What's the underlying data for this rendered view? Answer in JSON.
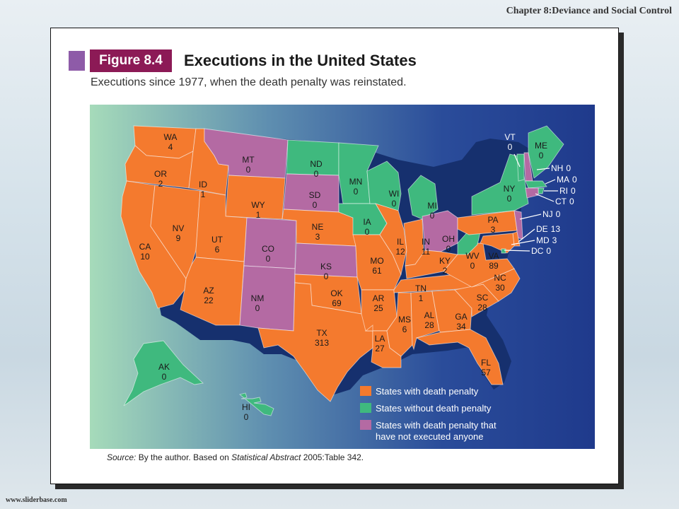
{
  "header": {
    "chapter": "Chapter  8:Deviance and Social Control"
  },
  "footer": {
    "url": "www.sliderbase.com"
  },
  "figure": {
    "badge": "Figure 8.4",
    "title": "Executions in the United States",
    "subtitle": "Executions since 1977, when the death penalty was reinstated.",
    "source_label": "Source:",
    "source_text_1": " By the author. Based on ",
    "source_italic": "Statistical Abstract",
    "source_text_2": " 2005:Table 342."
  },
  "colors": {
    "death_penalty": "#f47a2e",
    "no_death_penalty": "#3fb97e",
    "no_executions": "#b46aa3",
    "ocean_light": "#9fd7b7",
    "ocean_dark": "#1f3a8c"
  },
  "legend": [
    {
      "category": "death_penalty",
      "label": "States with death penalty"
    },
    {
      "category": "no_death_penalty",
      "label": "States without death penalty"
    },
    {
      "category": "no_executions",
      "label_line1": "States with death penalty that",
      "label_line2": "have not executed anyone"
    }
  ],
  "states": [
    {
      "abbr": "WA",
      "value": "4",
      "category": "death_penalty"
    },
    {
      "abbr": "OR",
      "value": "2",
      "category": "death_penalty"
    },
    {
      "abbr": "CA",
      "value": "10",
      "category": "death_penalty"
    },
    {
      "abbr": "ID",
      "value": "1",
      "category": "death_penalty"
    },
    {
      "abbr": "NV",
      "value": "9",
      "category": "death_penalty"
    },
    {
      "abbr": "MT",
      "value": "0",
      "category": "no_executions"
    },
    {
      "abbr": "WY",
      "value": "1",
      "category": "death_penalty"
    },
    {
      "abbr": "UT",
      "value": "6",
      "category": "death_penalty"
    },
    {
      "abbr": "AZ",
      "value": "22",
      "category": "death_penalty"
    },
    {
      "abbr": "CO",
      "value": "0",
      "category": "no_executions"
    },
    {
      "abbr": "NM",
      "value": "0",
      "category": "no_executions"
    },
    {
      "abbr": "ND",
      "value": "0",
      "category": "no_death_penalty"
    },
    {
      "abbr": "SD",
      "value": "0",
      "category": "no_executions"
    },
    {
      "abbr": "NE",
      "value": "3",
      "category": "death_penalty"
    },
    {
      "abbr": "KS",
      "value": "0",
      "category": "no_executions"
    },
    {
      "abbr": "OK",
      "value": "69",
      "category": "death_penalty"
    },
    {
      "abbr": "TX",
      "value": "313",
      "category": "death_penalty"
    },
    {
      "abbr": "MN",
      "value": "0",
      "category": "no_death_penalty"
    },
    {
      "abbr": "IA",
      "value": "0",
      "category": "no_death_penalty"
    },
    {
      "abbr": "MO",
      "value": "61",
      "category": "death_penalty"
    },
    {
      "abbr": "AR",
      "value": "25",
      "category": "death_penalty"
    },
    {
      "abbr": "LA",
      "value": "27",
      "category": "death_penalty"
    },
    {
      "abbr": "WI",
      "value": "0",
      "category": "no_death_penalty"
    },
    {
      "abbr": "IL",
      "value": "12",
      "category": "death_penalty"
    },
    {
      "abbr": "MI",
      "value": "0",
      "category": "no_death_penalty"
    },
    {
      "abbr": "IN",
      "value": "11",
      "category": "death_penalty"
    },
    {
      "abbr": "OH",
      "value": "0",
      "category": "no_executions"
    },
    {
      "abbr": "KY",
      "value": "2",
      "category": "death_penalty"
    },
    {
      "abbr": "TN",
      "value": "1",
      "category": "death_penalty"
    },
    {
      "abbr": "MS",
      "value": "6",
      "category": "death_penalty"
    },
    {
      "abbr": "AL",
      "value": "28",
      "category": "death_penalty"
    },
    {
      "abbr": "GA",
      "value": "34",
      "category": "death_penalty"
    },
    {
      "abbr": "FL",
      "value": "57",
      "category": "death_penalty"
    },
    {
      "abbr": "SC",
      "value": "28",
      "category": "death_penalty"
    },
    {
      "abbr": "NC",
      "value": "30",
      "category": "death_penalty"
    },
    {
      "abbr": "VA",
      "value": "89",
      "category": "death_penalty"
    },
    {
      "abbr": "WV",
      "value": "0",
      "category": "no_death_penalty"
    },
    {
      "abbr": "PA",
      "value": "3",
      "category": "death_penalty"
    },
    {
      "abbr": "NY",
      "value": "0",
      "category": "no_death_penalty"
    },
    {
      "abbr": "VT",
      "value": "0",
      "category": "no_death_penalty"
    },
    {
      "abbr": "ME",
      "value": "0",
      "category": "no_death_penalty"
    },
    {
      "abbr": "NH",
      "value": "0",
      "category": "no_executions"
    },
    {
      "abbr": "MA",
      "value": "0",
      "category": "no_death_penalty"
    },
    {
      "abbr": "RI",
      "value": "0",
      "category": "no_death_penalty"
    },
    {
      "abbr": "CT",
      "value": "0",
      "category": "no_executions"
    },
    {
      "abbr": "NJ",
      "value": "0",
      "category": "no_executions"
    },
    {
      "abbr": "DE",
      "value": "13",
      "category": "death_penalty"
    },
    {
      "abbr": "MD",
      "value": "3",
      "category": "death_penalty"
    },
    {
      "abbr": "DC",
      "value": "0",
      "category": "no_death_penalty"
    },
    {
      "abbr": "AK",
      "value": "0",
      "category": "no_death_penalty"
    },
    {
      "abbr": "HI",
      "value": "0",
      "category": "no_death_penalty"
    }
  ]
}
